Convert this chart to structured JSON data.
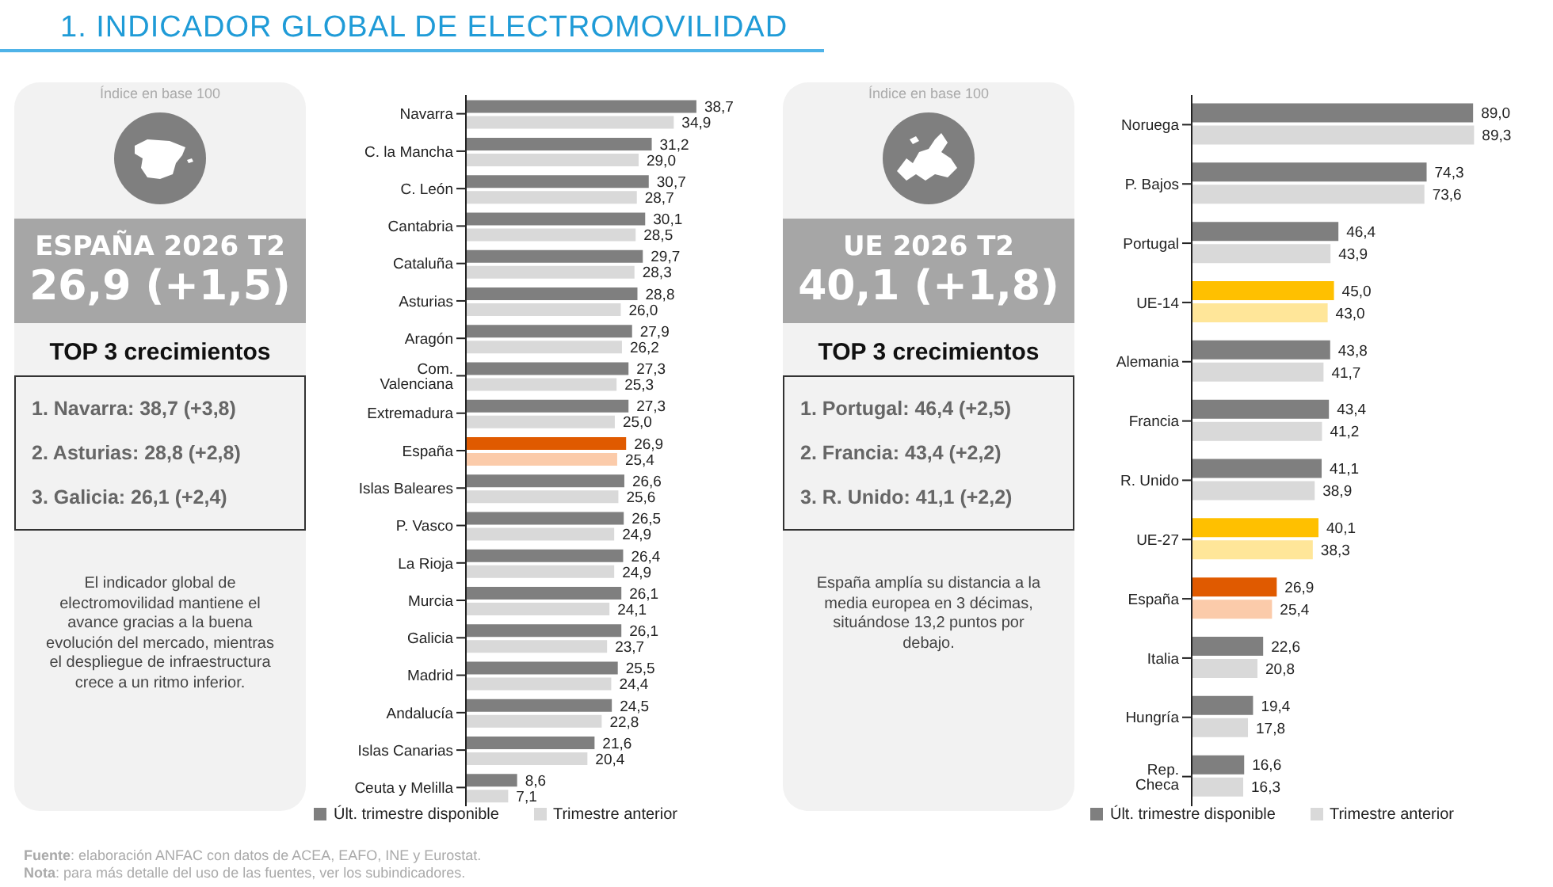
{
  "chart_data": [
    {
      "type": "bar",
      "orientation": "horizontal",
      "title": "1. INDICADOR GLOBAL DE ELECTROMOVILIDAD",
      "legend": "bottom",
      "categories": [
        "Navarra",
        "C. la Mancha",
        "C. León",
        "Cantabria",
        "Cataluña",
        "Asturias",
        "Aragón",
        "Com. Valenciana",
        "Extremadura",
        "España",
        "Islas Baleares",
        "P. Vasco",
        "La Rioja",
        "Murcia",
        "Galicia",
        "Madrid",
        "Andalucía",
        "Islas Canarias",
        "Ceuta y Melilla"
      ],
      "series": [
        {
          "name": "Últ. trimestre disponible",
          "color": "#7f7f7f",
          "colors": [
            "#7f7f7f",
            "#7f7f7f",
            "#7f7f7f",
            "#7f7f7f",
            "#7f7f7f",
            "#7f7f7f",
            "#7f7f7f",
            "#7f7f7f",
            "#7f7f7f",
            "#e05a00",
            "#7f7f7f",
            "#7f7f7f",
            "#7f7f7f",
            "#7f7f7f",
            "#7f7f7f",
            "#7f7f7f",
            "#7f7f7f",
            "#7f7f7f",
            "#7f7f7f"
          ],
          "values": [
            38.7,
            31.2,
            30.7,
            30.1,
            29.7,
            28.8,
            27.9,
            27.3,
            27.3,
            26.9,
            26.6,
            26.5,
            26.4,
            26.1,
            26.1,
            25.5,
            24.5,
            21.6,
            8.6
          ],
          "value_labels": [
            "38,7",
            "31,2",
            "30,7",
            "30,1",
            "29,7",
            "28,8",
            "27,9",
            "27,3",
            "27,3",
            "26,9",
            "26,6",
            "26,5",
            "26,4",
            "26,1",
            "26,1",
            "25,5",
            "24,5",
            "21,6",
            "8,6"
          ]
        },
        {
          "name": "Trimestre anterior",
          "color": "#d9d9d9",
          "colors": [
            "#d9d9d9",
            "#d9d9d9",
            "#d9d9d9",
            "#d9d9d9",
            "#d9d9d9",
            "#d9d9d9",
            "#d9d9d9",
            "#d9d9d9",
            "#d9d9d9",
            "#fbcbaa",
            "#d9d9d9",
            "#d9d9d9",
            "#d9d9d9",
            "#d9d9d9",
            "#d9d9d9",
            "#d9d9d9",
            "#d9d9d9",
            "#d9d9d9",
            "#d9d9d9"
          ],
          "values": [
            34.9,
            29.0,
            28.7,
            28.5,
            28.3,
            26.0,
            26.2,
            25.3,
            25.0,
            25.4,
            25.6,
            24.9,
            24.9,
            24.1,
            23.7,
            24.4,
            22.8,
            20.4,
            7.1
          ],
          "value_labels": [
            "34,9",
            "29,0",
            "28,7",
            "28,5",
            "28,3",
            "26,0",
            "26,2",
            "25,3",
            "25,0",
            "25,4",
            "25,6",
            "24,9",
            "24,9",
            "24,1",
            "23,7",
            "24,4",
            "22,8",
            "20,4",
            "7,1"
          ]
        }
      ],
      "annotations": [
        "Índice en base 100",
        "ESPAÑA 2026 T2",
        "26,9 (+1,5)",
        "TOP 3 crecimientos",
        "1.  Navarra: 38,7 (+3,8)",
        "2. Asturias: 28,8 (+2,8)",
        "3. Galicia: 26,1 (+2,4)",
        "El indicador global de electromovilidad mantiene el avance gracias a la buena evolución del mercado, mientras el despliegue de infraestructura crece a un ritmo inferior."
      ]
    },
    {
      "type": "bar",
      "orientation": "horizontal",
      "legend": "bottom",
      "categories": [
        "Noruega",
        "P. Bajos",
        "Portugal",
        "UE-14",
        "Alemania",
        "Francia",
        "R. Unido",
        "UE-27",
        "España",
        "Italia",
        "Hungría",
        "Rep. Checa"
      ],
      "series": [
        {
          "name": "Últ. trimestre disponible",
          "color": "#7f7f7f",
          "colors": [
            "#7f7f7f",
            "#7f7f7f",
            "#7f7f7f",
            "#ffc000",
            "#7f7f7f",
            "#7f7f7f",
            "#7f7f7f",
            "#ffc000",
            "#e05a00",
            "#7f7f7f",
            "#7f7f7f",
            "#7f7f7f"
          ],
          "values": [
            89.0,
            74.3,
            46.4,
            45.0,
            43.8,
            43.4,
            41.1,
            40.1,
            26.9,
            22.6,
            19.4,
            16.6
          ],
          "value_labels": [
            "89,0",
            "74,3",
            "46,4",
            "45,0",
            "43,8",
            "43,4",
            "41,1",
            "40,1",
            "26,9",
            "22,6",
            "19,4",
            "16,6"
          ]
        },
        {
          "name": "Trimestre anterior",
          "color": "#d9d9d9",
          "colors": [
            "#d9d9d9",
            "#d9d9d9",
            "#d9d9d9",
            "#ffe699",
            "#d9d9d9",
            "#d9d9d9",
            "#d9d9d9",
            "#ffe699",
            "#fbcbaa",
            "#d9d9d9",
            "#d9d9d9",
            "#d9d9d9"
          ],
          "values": [
            89.3,
            73.6,
            43.9,
            43.0,
            41.7,
            41.2,
            38.9,
            38.3,
            25.4,
            20.8,
            17.8,
            16.3
          ],
          "value_labels": [
            "89,3",
            "73,6",
            "43,9",
            "43,0",
            "41,7",
            "41,2",
            "38,9",
            "38,3",
            "25,4",
            "20,8",
            "17,8",
            "16,3"
          ]
        }
      ],
      "annotations": [
        "Índice en base 100",
        "UE 2026 T2",
        "40,1 (+1,8)",
        "TOP 3 crecimientos",
        "1.  Portugal: 46,4 (+2,5)",
        "2. Francia: 43,4 (+2,2)",
        "3. R. Unido: 41,1 (+2,2)",
        "España amplía su distancia a la media europea en 3 décimas, situándose 13,2 puntos por debajo.",
        "Fuente: elaboración ANFAC con datos de ACEA, EAFO, INE y Eurostat.",
        "Nota: para más detalle del uso de las fuentes, ver los subindicadores."
      ]
    }
  ]
}
